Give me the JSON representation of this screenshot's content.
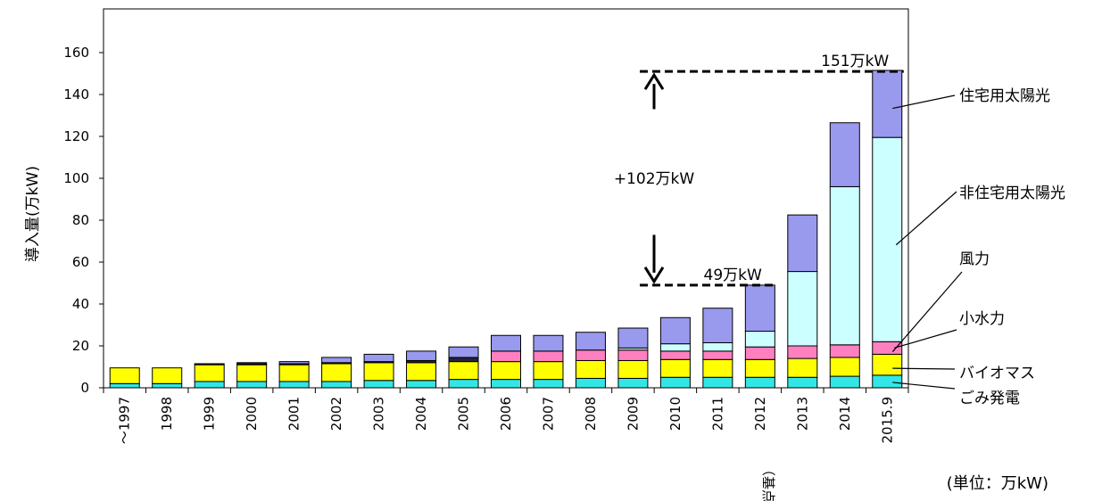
{
  "chart_data": {
    "type": "bar",
    "stacked": true,
    "title": "",
    "xlabel": "",
    "ylabel": "導入量(万kW)",
    "ylim": [
      0,
      170
    ],
    "yticks": [
      0,
      20,
      40,
      60,
      80,
      100,
      120,
      140,
      160
    ],
    "grid": false,
    "categories": [
      "～1997",
      "1998",
      "1999",
      "2000",
      "2001",
      "2002",
      "2003",
      "2004",
      "2005",
      "2006",
      "2007",
      "2008",
      "2009",
      "2010",
      "2011",
      "2012",
      "2013",
      "2014",
      "2015.9"
    ],
    "category_sublabels": {
      "2012": "（基点）"
    },
    "series": [
      {
        "name": "ごみ発電",
        "color": "#33e6e6",
        "values": [
          2,
          2,
          3,
          3,
          3,
          3,
          3.5,
          3.5,
          4,
          4,
          4,
          4.5,
          4.5,
          5,
          5,
          5,
          5,
          5.5,
          6
        ]
      },
      {
        "name": "バイオマス",
        "color": "#ffff00",
        "values": [
          7.5,
          7.5,
          8,
          8,
          8,
          8.5,
          8.5,
          8.5,
          8.5,
          8.5,
          8.5,
          8.5,
          8.5,
          8.5,
          8.5,
          8.5,
          9,
          9,
          10
        ]
      },
      {
        "name": "小水力",
        "color": "#ff80c0",
        "values": [
          0,
          0,
          0,
          0,
          0,
          0,
          0,
          0,
          0,
          5,
          5,
          5,
          5,
          4,
          4,
          6,
          6,
          6,
          6
        ]
      },
      {
        "name": "風力",
        "color": "#222244",
        "values": [
          0,
          0,
          0.5,
          0.5,
          0.5,
          0.5,
          0.5,
          1,
          2,
          0,
          0,
          0,
          0,
          0,
          0,
          0,
          0,
          0,
          0
        ]
      },
      {
        "name": "非住宅用太陽光",
        "color": "#ccffff",
        "values": [
          0,
          0,
          0,
          0,
          0,
          0,
          0,
          0,
          0,
          0,
          0,
          0,
          1,
          3.5,
          4,
          7.5,
          35.5,
          75.5,
          97.5
        ]
      },
      {
        "name": "住宅用太陽光",
        "color": "#9999ee",
        "values": [
          0,
          0,
          0,
          0.5,
          1,
          2.5,
          3.5,
          4.5,
          5,
          7.5,
          7.5,
          8.5,
          9.5,
          12.5,
          16.5,
          22,
          27,
          30.5,
          32
        ]
      }
    ],
    "annotations": [
      {
        "text": "151万kW",
        "at_category": "2015.9",
        "value": 151
      },
      {
        "text": "49万kW",
        "at_category": "2012",
        "value": 49
      },
      {
        "text": "+102万kW",
        "from": 49,
        "to": 151
      }
    ],
    "legend_placement": "right"
  },
  "unit_note": "(単位：万kW)"
}
